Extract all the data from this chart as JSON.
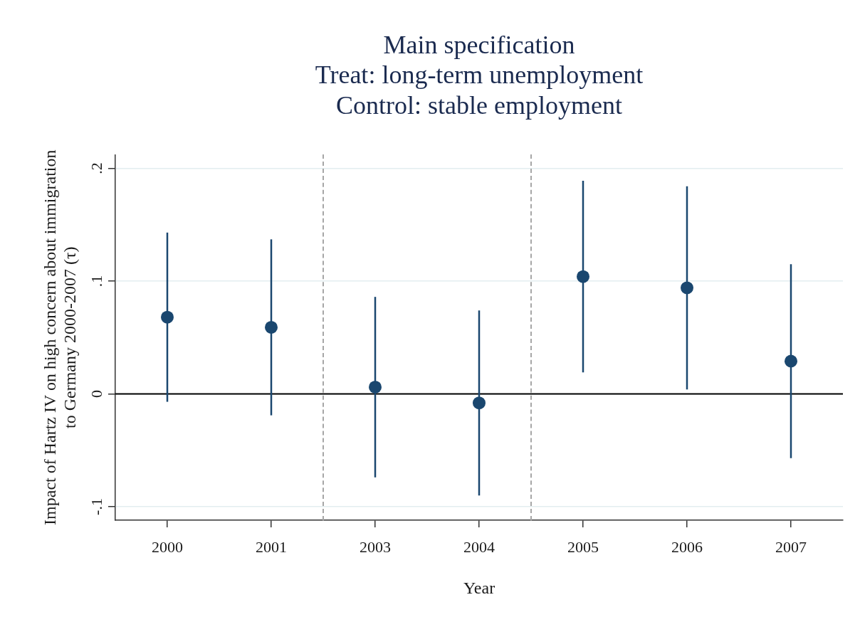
{
  "chart_data": {
    "type": "scatter",
    "title": "Main specification\nTreat: long-term unemployment\nControl: stable employment",
    "xlabel": "Year",
    "ylabel": "Impact of Hartz IV on high concern about immigration\nto Germany 2000-2007 (τ)",
    "categories": [
      "2000",
      "2001",
      "2003",
      "2004",
      "2005",
      "2006",
      "2007"
    ],
    "values": [
      0.068,
      0.059,
      0.006,
      -0.008,
      0.104,
      0.094,
      0.029
    ],
    "errors": [
      0.075,
      0.078,
      0.08,
      0.082,
      0.085,
      0.09,
      0.086
    ],
    "color": "#1a476f",
    "marker": "circle",
    "ylim": [
      -0.112,
      0.212
    ],
    "yticks": [
      {
        "value": -0.1,
        "label": "-.1"
      },
      0,
      {
        "value": 0.1,
        "label": ".1"
      },
      {
        "value": 0.2,
        "label": ".2"
      }
    ],
    "ref_lines": [
      {
        "axis": "y",
        "value": 0,
        "color": "#000000",
        "line_style": "solid"
      }
    ],
    "grid": "y"
  }
}
